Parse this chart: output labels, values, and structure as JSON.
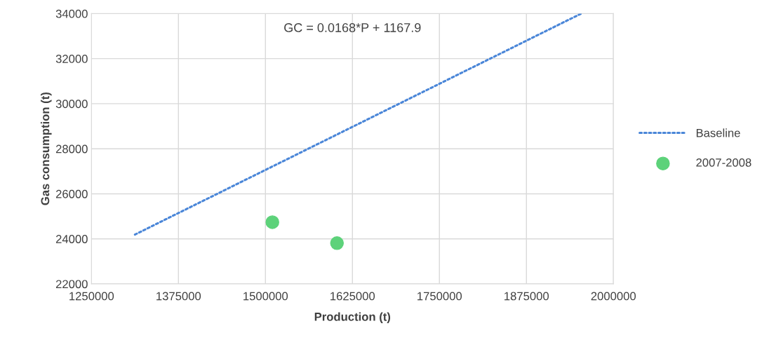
{
  "chart_data": {
    "type": "scatter",
    "xlabel": "Production (t)",
    "ylabel": "Gas consumption (t)",
    "series": [
      {
        "name": "Baseline",
        "type": "line",
        "color": "#4a86d8",
        "line_style": "dotted",
        "marker": "none",
        "x": [
          1312500,
          1953600
        ],
        "values": [
          24190,
          34000
        ]
      },
      {
        "name": "2007-2008",
        "color": "#5dd27a",
        "marker": "circle",
        "x": [
          1510000,
          1602800
        ],
        "values": [
          24740,
          23810
        ]
      }
    ],
    "annotations": [
      "GC = 0.0168*P + 1167.9"
    ],
    "xlim": [
      1250000,
      2000000
    ],
    "xticks": [
      1250000,
      1375000,
      1500000,
      1625000,
      1750000,
      1875000,
      2000000
    ],
    "ylim": [
      22000,
      34000
    ],
    "yticks": [
      22000,
      24000,
      26000,
      28000,
      30000,
      32000,
      34000
    ],
    "grid": true,
    "legend": "right"
  }
}
